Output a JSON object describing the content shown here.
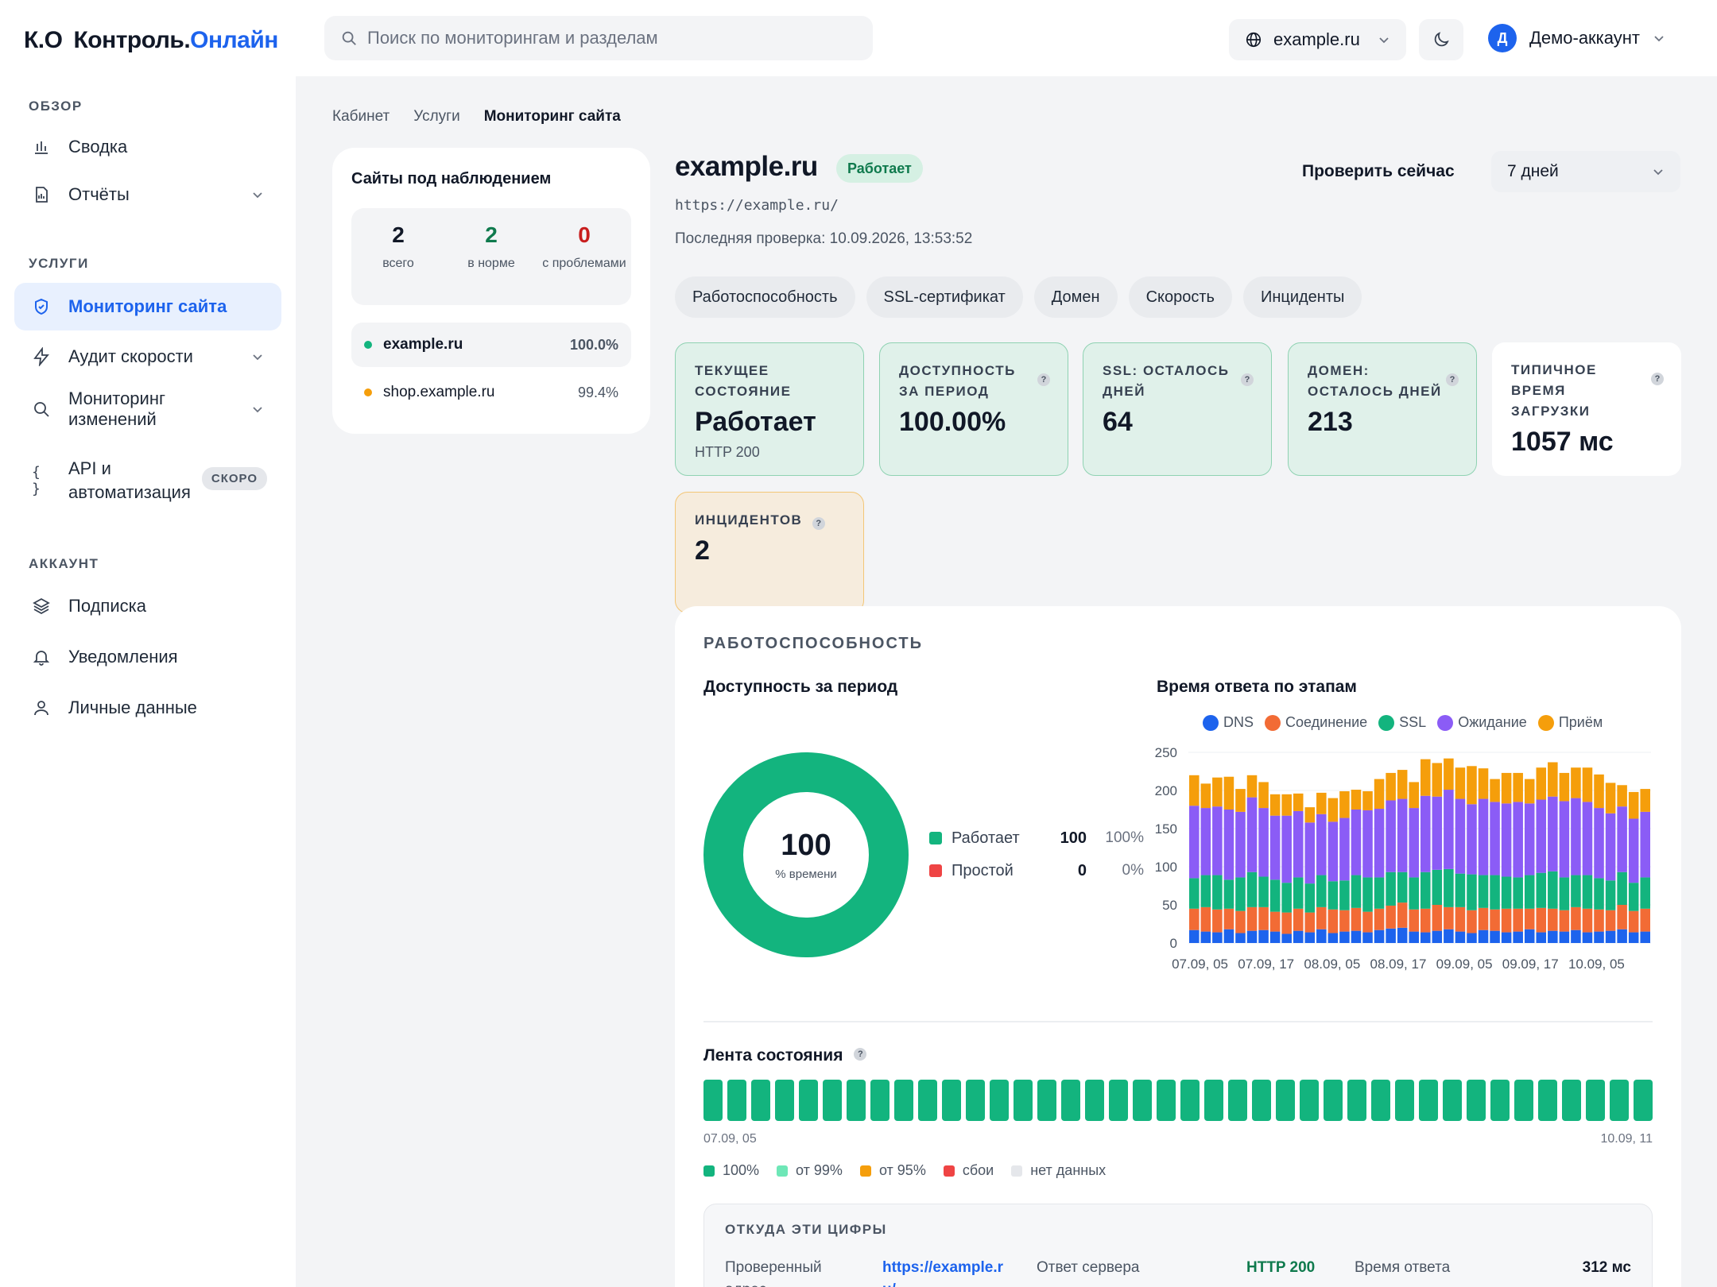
{
  "brand": {
    "prefix": "К.О",
    "name": "Контроль.",
    "accent": "Онлайн",
    "accent_color": "#1d63ed"
  },
  "topbar": {
    "search_placeholder": "Поиск по мониторингам и разделам",
    "domain": "example.ru",
    "account_initial": "Д",
    "account_name": "Демо-аккаунт"
  },
  "sidebar": {
    "sections": [
      {
        "label": "ОБЗОР"
      },
      {
        "label": "УСЛУГИ"
      },
      {
        "label": "АККАУНТ"
      }
    ],
    "items": [
      {
        "label": "Сводка",
        "icon": "bar-chart-icon"
      },
      {
        "label": "Отчёты",
        "icon": "report-icon"
      },
      {
        "label": "Мониторинг сайта",
        "icon": "shield-icon",
        "active": true
      },
      {
        "label": "Аудит скорости",
        "icon": "lightning-icon"
      },
      {
        "label": "Мониторинг изменений",
        "icon": "search-icon"
      },
      {
        "label": "API и автоматизация",
        "icon": "code-braces-icon",
        "badge": "СКОРО"
      },
      {
        "label": "Подписка",
        "icon": "layers-icon"
      },
      {
        "label": "Уведомления",
        "icon": "bell-icon"
      },
      {
        "label": "Личные данные",
        "icon": "user-icon"
      }
    ]
  },
  "breadcrumb": [
    "Кабинет",
    "Услуги",
    "Мониторинг сайта"
  ],
  "sites": {
    "title": "Сайты под наблюдением",
    "stats": [
      {
        "value": "2",
        "label": "всего",
        "color": "#111827"
      },
      {
        "value": "2",
        "label": "в норме",
        "color": "#0f7a4d"
      },
      {
        "value": "0",
        "label": "с проблемами",
        "color": "#c81e1e"
      }
    ],
    "list": [
      {
        "name": "example.ru",
        "pct": "100.0%",
        "dot": "#13b47e"
      },
      {
        "name": "shop.example.ru",
        "pct": "99.4%",
        "dot": "#f59e0b"
      }
    ]
  },
  "site": {
    "title": "example.ru",
    "status": "Работает",
    "url": "https://example.ru/",
    "last_check": "Последняя проверка: 10.09.2026, 13:53:52",
    "check_button": "Проверить сейчас",
    "period": "7 дней"
  },
  "tabs": [
    "Работоспособность",
    "SSL-сертификат",
    "Домен",
    "Скорость",
    "Инциденты"
  ],
  "metrics": [
    {
      "label": "Текущее состояние",
      "value": "Работает",
      "sub": "HTTP 200"
    },
    {
      "label": "Доступность за период",
      "value": "100.00%",
      "help": "?"
    },
    {
      "label": "SSL: осталось дней",
      "value": "64",
      "help": "?"
    },
    {
      "label": "Домен: осталось дней",
      "value": "213",
      "help": "?"
    },
    {
      "label": "Типичное время загрузки",
      "value": "1057 мс",
      "help": "?"
    },
    {
      "label": "Инцидентов",
      "value": "2",
      "help": "?"
    }
  ],
  "uptime": {
    "section_title": "РАБОТОСПОСОБНОСТЬ",
    "availability_title": "Доступность за период",
    "donut_value": "100",
    "donut_caption": "% времени",
    "legend": [
      {
        "label": "Работает",
        "count": "100",
        "pct": "100%",
        "color": "#13b47e"
      },
      {
        "label": "Простой",
        "count": "0",
        "pct": "0%",
        "color": "#ef4444"
      }
    ],
    "response_title": "Время ответа по этапам",
    "feed_title": "Лента состояния",
    "feed_start": "07.09, 05",
    "feed_end": "10.09, 11",
    "feed_legend": [
      {
        "label": "100%",
        "color": "#13b47e"
      },
      {
        "label": "от 99%",
        "color": "#6ee7b7"
      },
      {
        "label": "от 95%",
        "color": "#f59e0b"
      },
      {
        "label": "сбои",
        "color": "#ef4444"
      },
      {
        "label": "нет данных",
        "color": "#e5e7eb"
      }
    ],
    "feed_blocks": 40
  },
  "origin": {
    "title": "ОТКУДА ЭТИ ЦИФРЫ",
    "checked_label": "Проверенный адрес",
    "checked_value": "https://example.ru/",
    "server_label": "Ответ сервера",
    "server_value": "HTTP 200",
    "time_label": "Время ответа",
    "time_value": "312 мс"
  },
  "chart_data": {
    "type": "bar",
    "stacked": true,
    "title": "Время ответа по этапам",
    "ylim": [
      0,
      250
    ],
    "yticks": [
      0,
      50,
      100,
      150,
      200,
      250
    ],
    "xtick_labels": [
      "07.09, 05",
      "07.09, 17",
      "08.09, 05",
      "08.09, 17",
      "09.09, 05",
      "09.09, 17",
      "10.09, 05"
    ],
    "grid": true,
    "legend_position": "top",
    "series": [
      {
        "name": "DNS",
        "color": "#1d63ed",
        "values": [
          17,
          15,
          14,
          18,
          13,
          16,
          17,
          15,
          12,
          16,
          14,
          18,
          13,
          15,
          16,
          14,
          17,
          19,
          20,
          15,
          14,
          16,
          18,
          15,
          13,
          17,
          16,
          14,
          15,
          18,
          14,
          16,
          15,
          17,
          14,
          15,
          16,
          18,
          14,
          15
        ]
      },
      {
        "name": "Соединение",
        "color": "#f26b35",
        "values": [
          28,
          32,
          30,
          27,
          29,
          31,
          30,
          26,
          28,
          29,
          26,
          29,
          31,
          28,
          30,
          27,
          28,
          30,
          33,
          29,
          31,
          34,
          29,
          32,
          30,
          29,
          28,
          31,
          30,
          27,
          32,
          29,
          28,
          30,
          31,
          29,
          27,
          32,
          28,
          30
        ]
      },
      {
        "name": "SSL",
        "color": "#13b47e",
        "values": [
          40,
          42,
          45,
          38,
          44,
          46,
          40,
          42,
          39,
          41,
          38,
          42,
          37,
          39,
          43,
          45,
          41,
          44,
          40,
          42,
          48,
          46,
          50,
          44,
          47,
          43,
          45,
          42,
          41,
          44,
          46,
          49,
          43,
          42,
          44,
          41,
          39,
          43,
          37,
          41
        ]
      },
      {
        "name": "Ожидание",
        "color": "#8b5cf6",
        "values": [
          95,
          88,
          90,
          92,
          86,
          98,
          90,
          84,
          88,
          87,
          80,
          80,
          78,
          82,
          86,
          88,
          90,
          94,
          96,
          91,
          100,
          96,
          104,
          98,
          92,
          100,
          96,
          96,
          99,
          94,
          96,
          98,
          100,
          101,
          96,
          92,
          88,
          86,
          84,
          86
        ]
      },
      {
        "name": "Приём",
        "color": "#f59e0b",
        "values": [
          40,
          32,
          38,
          43,
          30,
          29,
          34,
          28,
          28,
          23,
          20,
          28,
          31,
          35,
          26,
          25,
          39,
          36,
          38,
          34,
          48,
          44,
          41,
          41,
          50,
          40,
          30,
          40,
          38,
          32,
          42,
          45,
          37,
          40,
          45,
          44,
          40,
          28,
          35,
          30
        ]
      }
    ]
  }
}
